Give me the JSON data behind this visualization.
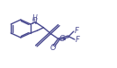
{
  "bg": "#ffffff",
  "lc": "#4a4a90",
  "lw": 1.0,
  "fs": 5.5,
  "xlim": [
    0,
    13
  ],
  "ylim": [
    0,
    9.5
  ]
}
